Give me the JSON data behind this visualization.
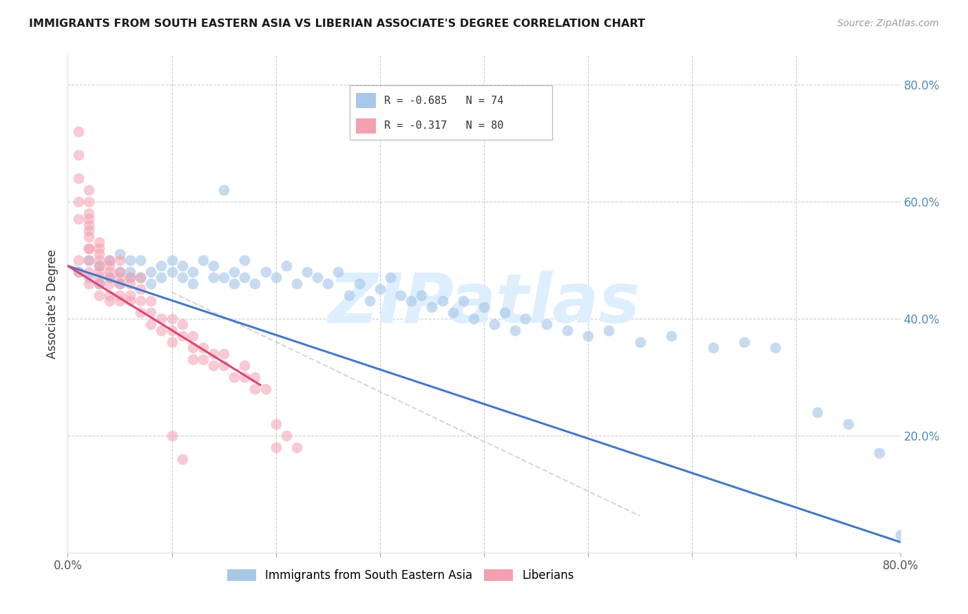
{
  "title": "IMMIGRANTS FROM SOUTH EASTERN ASIA VS LIBERIAN ASSOCIATE'S DEGREE CORRELATION CHART",
  "source": "Source: ZipAtlas.com",
  "ylabel": "Associate's Degree",
  "legend_blue_label": "Immigrants from South Eastern Asia",
  "legend_pink_label": "Liberians",
  "blue_R": -0.685,
  "blue_N": 74,
  "pink_R": -0.317,
  "pink_N": 80,
  "xlim": [
    0.0,
    0.8
  ],
  "ylim": [
    0.0,
    0.85
  ],
  "blue_color": "#a8c8e8",
  "pink_color": "#f4a0b0",
  "trend_blue": "#4477cc",
  "trend_pink": "#dd4477",
  "trend_gray": "#cccccc",
  "watermark": "ZIPatlas",
  "watermark_color": "#ddeeff",
  "background_color": "#ffffff",
  "blue_scatter_x": [
    0.01,
    0.02,
    0.02,
    0.03,
    0.03,
    0.04,
    0.04,
    0.05,
    0.05,
    0.05,
    0.06,
    0.06,
    0.06,
    0.07,
    0.07,
    0.08,
    0.08,
    0.09,
    0.09,
    0.1,
    0.1,
    0.11,
    0.11,
    0.12,
    0.12,
    0.13,
    0.14,
    0.14,
    0.15,
    0.15,
    0.16,
    0.16,
    0.17,
    0.17,
    0.18,
    0.19,
    0.2,
    0.21,
    0.22,
    0.23,
    0.24,
    0.25,
    0.26,
    0.27,
    0.28,
    0.29,
    0.3,
    0.31,
    0.32,
    0.33,
    0.34,
    0.35,
    0.36,
    0.37,
    0.38,
    0.39,
    0.4,
    0.41,
    0.42,
    0.43,
    0.44,
    0.46,
    0.48,
    0.5,
    0.52,
    0.55,
    0.58,
    0.62,
    0.65,
    0.68,
    0.72,
    0.75,
    0.78,
    0.8
  ],
  "blue_scatter_y": [
    0.48,
    0.5,
    0.47,
    0.49,
    0.46,
    0.47,
    0.5,
    0.46,
    0.48,
    0.51,
    0.47,
    0.5,
    0.48,
    0.47,
    0.5,
    0.48,
    0.46,
    0.49,
    0.47,
    0.48,
    0.5,
    0.47,
    0.49,
    0.46,
    0.48,
    0.5,
    0.47,
    0.49,
    0.62,
    0.47,
    0.48,
    0.46,
    0.47,
    0.5,
    0.46,
    0.48,
    0.47,
    0.49,
    0.46,
    0.48,
    0.47,
    0.46,
    0.48,
    0.44,
    0.46,
    0.43,
    0.45,
    0.47,
    0.44,
    0.43,
    0.44,
    0.42,
    0.43,
    0.41,
    0.43,
    0.4,
    0.42,
    0.39,
    0.41,
    0.38,
    0.4,
    0.39,
    0.38,
    0.37,
    0.38,
    0.36,
    0.37,
    0.35,
    0.36,
    0.35,
    0.24,
    0.22,
    0.17,
    0.03
  ],
  "pink_scatter_x": [
    0.01,
    0.01,
    0.01,
    0.01,
    0.01,
    0.01,
    0.01,
    0.02,
    0.02,
    0.02,
    0.02,
    0.02,
    0.02,
    0.02,
    0.02,
    0.02,
    0.02,
    0.02,
    0.02,
    0.03,
    0.03,
    0.03,
    0.03,
    0.03,
    0.03,
    0.03,
    0.03,
    0.03,
    0.04,
    0.04,
    0.04,
    0.04,
    0.04,
    0.04,
    0.04,
    0.05,
    0.05,
    0.05,
    0.05,
    0.05,
    0.05,
    0.06,
    0.06,
    0.06,
    0.06,
    0.07,
    0.07,
    0.07,
    0.07,
    0.08,
    0.08,
    0.08,
    0.09,
    0.09,
    0.1,
    0.1,
    0.1,
    0.11,
    0.11,
    0.12,
    0.12,
    0.12,
    0.13,
    0.13,
    0.14,
    0.14,
    0.15,
    0.15,
    0.16,
    0.17,
    0.17,
    0.18,
    0.18,
    0.19,
    0.2,
    0.2,
    0.21,
    0.22,
    0.1,
    0.11
  ],
  "pink_scatter_y": [
    0.72,
    0.68,
    0.64,
    0.6,
    0.57,
    0.5,
    0.48,
    0.55,
    0.57,
    0.52,
    0.5,
    0.48,
    0.46,
    0.56,
    0.58,
    0.62,
    0.6,
    0.54,
    0.52,
    0.5,
    0.52,
    0.48,
    0.47,
    0.51,
    0.49,
    0.53,
    0.46,
    0.44,
    0.48,
    0.47,
    0.5,
    0.46,
    0.44,
    0.49,
    0.43,
    0.46,
    0.48,
    0.44,
    0.47,
    0.43,
    0.5,
    0.46,
    0.44,
    0.47,
    0.43,
    0.45,
    0.43,
    0.41,
    0.47,
    0.43,
    0.41,
    0.39,
    0.4,
    0.38,
    0.4,
    0.38,
    0.36,
    0.39,
    0.37,
    0.37,
    0.35,
    0.33,
    0.35,
    0.33,
    0.34,
    0.32,
    0.34,
    0.32,
    0.3,
    0.32,
    0.3,
    0.28,
    0.3,
    0.28,
    0.22,
    0.18,
    0.2,
    0.18,
    0.2,
    0.16
  ]
}
